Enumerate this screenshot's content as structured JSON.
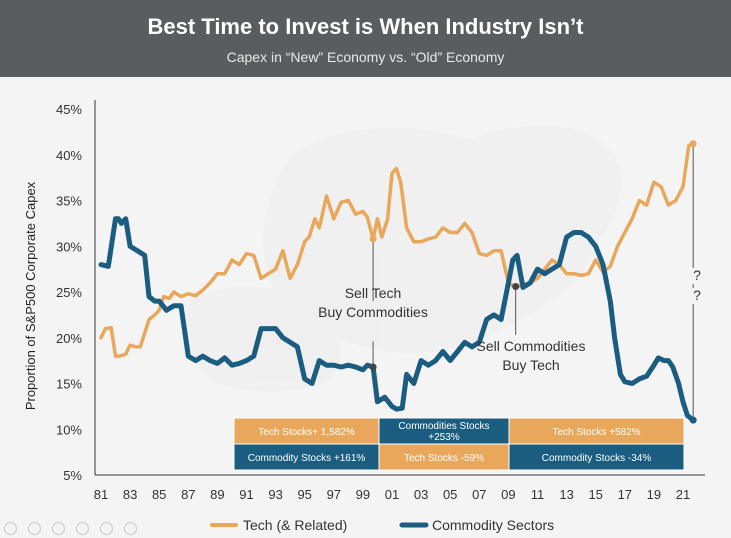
{
  "header": {
    "title": "Best Time to Invest is When Industry Isn’t",
    "subtitle": "Capex in “New” Economy vs. “Old” Economy"
  },
  "colors": {
    "tech": "#e8a75a",
    "commodity": "#1b5d80",
    "header_bg": "#5a5c5d"
  },
  "chart_data": {
    "type": "line",
    "ylabel": "Proportion of S&P500 Corporate Capex",
    "ylim": [
      5,
      45
    ],
    "yticks": [
      "45%",
      "40%",
      "35%",
      "30%",
      "25%",
      "20%",
      "15%",
      "10%",
      "5%"
    ],
    "xlim": [
      1980.6,
      2022.6
    ],
    "xticks": [
      "81",
      "83",
      "85",
      "87",
      "89",
      "91",
      "93",
      "95",
      "97",
      "99",
      "01",
      "03",
      "05",
      "07",
      "09",
      "11",
      "13",
      "15",
      "17",
      "19",
      "21"
    ],
    "series": [
      {
        "name": "Tech (& Related)",
        "x": [
          1981,
          1981.3,
          1981.7,
          1982.0,
          1982.3,
          1982.7,
          1983.0,
          1983.4,
          1983.7,
          1984.0,
          1984.3,
          1984.7,
          1985.0,
          1985.3,
          1985.7,
          1986.0,
          1986.5,
          1987.0,
          1987.5,
          1988.0,
          1988.5,
          1989.0,
          1989.5,
          1990.0,
          1990.5,
          1991.0,
          1991.5,
          1992.0,
          1992.5,
          1993.0,
          1993.5,
          1994.0,
          1994.5,
          1995.0,
          1995.3,
          1995.7,
          1996.0,
          1996.5,
          1997.0,
          1997.5,
          1998.0,
          1998.5,
          1999.0,
          1999.3,
          1999.7,
          2000.0,
          2000.3,
          2000.7,
          2001.0,
          2001.3,
          2001.6,
          2002.0,
          2002.5,
          2003.0,
          2003.5,
          2004.0,
          2004.5,
          2005.0,
          2005.5,
          2006.0,
          2006.5,
          2007.0,
          2007.5,
          2008.0,
          2008.5,
          2009.0,
          2009.5,
          2010.0,
          2010.5,
          2011.0,
          2011.5,
          2012.0,
          2012.5,
          2013.0,
          2013.5,
          2014.0,
          2014.5,
          2015.0,
          2015.5,
          2016.0,
          2016.5,
          2017.0,
          2017.5,
          2018.0,
          2018.5,
          2019.0,
          2019.5,
          2020.0,
          2020.5,
          2021.0,
          2021.4,
          2021.7
        ],
        "y": [
          20.0,
          21.0,
          21.1,
          18.0,
          18.0,
          18.2,
          19.2,
          19.0,
          19.0,
          20.5,
          22.0,
          22.5,
          23.0,
          24.5,
          24.3,
          25.0,
          24.5,
          24.8,
          24.6,
          25.2,
          26.0,
          27.0,
          27.0,
          28.5,
          28.0,
          29.2,
          29.0,
          26.5,
          27.0,
          27.5,
          29.5,
          26.5,
          28.0,
          30.5,
          31.0,
          33.0,
          32.0,
          35.5,
          33.0,
          34.8,
          35.0,
          33.5,
          33.8,
          33.2,
          30.8,
          33.0,
          31.0,
          33.0,
          38.0,
          38.5,
          37.0,
          32.0,
          30.5,
          30.5,
          30.8,
          31.0,
          32.0,
          31.5,
          31.5,
          32.5,
          31.5,
          29.2,
          29.0,
          29.5,
          29.5,
          26.0,
          25.5,
          25.8,
          26.0,
          26.5,
          27.5,
          28.5,
          28.0,
          27.0,
          27.0,
          26.8,
          27.0,
          28.5,
          27.2,
          27.8,
          30.0,
          31.5,
          33.0,
          35.0,
          34.5,
          37.0,
          36.5,
          34.5,
          35.0,
          36.5,
          41.0,
          41.2
        ]
      },
      {
        "name": "Commodity Sectors",
        "x": [
          1981,
          1981.5,
          1982.0,
          1982.2,
          1982.4,
          1982.7,
          1983.0,
          1983.5,
          1984.0,
          1984.3,
          1984.7,
          1985.0,
          1985.5,
          1986.0,
          1986.5,
          1987.0,
          1987.5,
          1988.0,
          1988.5,
          1989.0,
          1989.5,
          1990.0,
          1990.5,
          1991.0,
          1991.5,
          1992.0,
          1992.5,
          1993.0,
          1993.5,
          1994.0,
          1994.5,
          1995.0,
          1995.5,
          1996.0,
          1996.5,
          1997.0,
          1997.5,
          1998.0,
          1998.5,
          1999.0,
          1999.3,
          1999.7,
          2000.0,
          2000.5,
          2001.0,
          2001.3,
          2001.7,
          2002.0,
          2002.5,
          2003.0,
          2003.5,
          2004.0,
          2004.5,
          2005.0,
          2005.5,
          2006.0,
          2006.5,
          2007.0,
          2007.5,
          2008.0,
          2008.5,
          2009.0,
          2009.3,
          2009.6,
          2010.0,
          2010.5,
          2011.0,
          2011.5,
          2012.0,
          2012.5,
          2013.0,
          2013.5,
          2014.0,
          2014.5,
          2015.0,
          2015.5,
          2016.0,
          2016.3,
          2016.7,
          2017.0,
          2017.5,
          2018.0,
          2018.5,
          2019.0,
          2019.3,
          2019.7,
          2020.0,
          2020.3,
          2020.7,
          2021.0,
          2021.3,
          2021.7
        ],
        "y": [
          28.0,
          27.8,
          33.0,
          33.0,
          32.5,
          33.0,
          30.0,
          29.5,
          29.0,
          24.5,
          24.0,
          24.0,
          23.0,
          23.5,
          23.5,
          18.0,
          17.5,
          18.0,
          17.5,
          17.2,
          17.8,
          17.0,
          17.2,
          17.5,
          18.0,
          21.0,
          21.0,
          21.0,
          20.0,
          19.5,
          19.0,
          15.5,
          15.0,
          17.5,
          17.0,
          17.0,
          16.8,
          17.0,
          16.8,
          16.5,
          17.0,
          16.8,
          13.0,
          13.5,
          12.5,
          12.2,
          12.3,
          16.0,
          15.0,
          17.5,
          17.0,
          17.5,
          18.5,
          17.5,
          18.5,
          19.5,
          19.0,
          19.5,
          22.0,
          22.5,
          22.0,
          26.0,
          28.5,
          29.0,
          25.5,
          26.0,
          27.5,
          27.0,
          27.5,
          28.0,
          31.0,
          31.5,
          31.5,
          31.0,
          30.0,
          28.0,
          24.0,
          20.0,
          16.0,
          15.2,
          15.0,
          15.5,
          15.8,
          17.0,
          17.8,
          17.5,
          17.5,
          16.8,
          15.0,
          13.0,
          11.5,
          11.0
        ]
      }
    ],
    "annotations": [
      {
        "lines": [
          "Sell Tech",
          "Buy Commodities"
        ]
      },
      {
        "lines": [
          "Sell Commodities",
          "Buy Tech"
        ]
      },
      {
        "lines": [
          "?",
          "?"
        ]
      }
    ],
    "table": {
      "row1": [
        "Tech Stocks+ 1,582%",
        "Commodities Stocks +253%",
        "Tech Stocks +582%"
      ],
      "row2": [
        "Commodity Stocks +161%",
        "Tech Stocks -59%",
        "Commodity Stocks -34%"
      ]
    },
    "legend": {
      "position": "bottom",
      "items": [
        "Tech (& Related)",
        "Commodity Sectors"
      ]
    },
    "grid": false
  }
}
